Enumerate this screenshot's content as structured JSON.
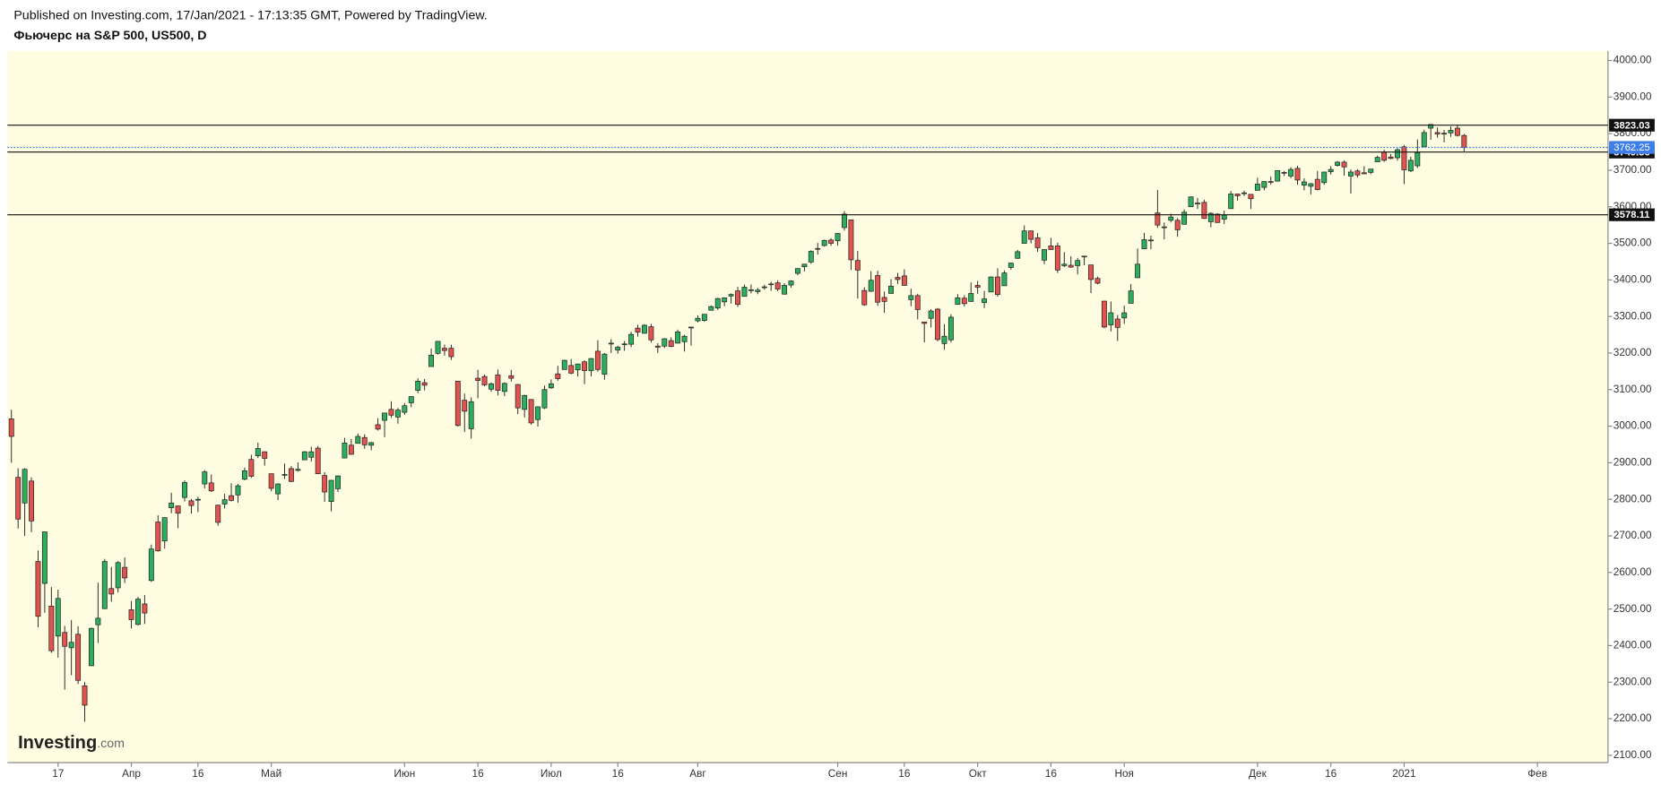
{
  "header": {
    "published": "Published on Investing.com, 17/Jan/2021 - 17:13:35 GMT, Powered by TradingView."
  },
  "chart_data": {
    "type": "candlestick",
    "title": "Фьючерс на S&P 500, US500, D",
    "brand": "Investing",
    "brand_suffix": ".com",
    "up_color": "#2dae5f",
    "down_color": "#e0534f",
    "background": "#fffde1",
    "ylim": [
      2080,
      4026
    ],
    "xlim": [
      -0.6,
      239.6
    ],
    "yticks": [
      {
        "value": 2100,
        "label": "2100.00"
      },
      {
        "value": 2200,
        "label": "2200.00"
      },
      {
        "value": 2300,
        "label": "2300.00"
      },
      {
        "value": 2400,
        "label": "2400.00"
      },
      {
        "value": 2500,
        "label": "2500.00"
      },
      {
        "value": 2600,
        "label": "2600.00"
      },
      {
        "value": 2700,
        "label": "2700.00"
      },
      {
        "value": 2800,
        "label": "2800.00"
      },
      {
        "value": 2900,
        "label": "2900.00"
      },
      {
        "value": 3000,
        "label": "3000.00"
      },
      {
        "value": 3100,
        "label": "3100.00"
      },
      {
        "value": 3200,
        "label": "3200.00"
      },
      {
        "value": 3300,
        "label": "3300.00"
      },
      {
        "value": 3400,
        "label": "3400.00"
      },
      {
        "value": 3500,
        "label": "3500.00"
      },
      {
        "value": 3600,
        "label": "3600.00"
      },
      {
        "value": 3700,
        "label": "3700.00"
      },
      {
        "value": 3800,
        "label": "3800.00"
      },
      {
        "value": 3900,
        "label": "3900.00"
      },
      {
        "value": 4000,
        "label": "4000.00"
      }
    ],
    "xticks": [
      {
        "value": 7,
        "label": "17"
      },
      {
        "value": 18,
        "label": "Апр"
      },
      {
        "value": 28,
        "label": "16"
      },
      {
        "value": 39,
        "label": "Май"
      },
      {
        "value": 59,
        "label": "Июн"
      },
      {
        "value": 70,
        "label": "16"
      },
      {
        "value": 81,
        "label": "Июл"
      },
      {
        "value": 91,
        "label": "16"
      },
      {
        "value": 103,
        "label": "Авг"
      },
      {
        "value": 124,
        "label": "Сен"
      },
      {
        "value": 134,
        "label": "16"
      },
      {
        "value": 145,
        "label": "Окт"
      },
      {
        "value": 156,
        "label": "16"
      },
      {
        "value": 167,
        "label": "Ноя"
      },
      {
        "value": 187,
        "label": "Дек"
      },
      {
        "value": 198,
        "label": "16"
      },
      {
        "value": 209,
        "label": "2021"
      },
      {
        "value": 229,
        "label": "Фев"
      }
    ],
    "levels": [
      3823.03,
      3749.56,
      3578.11
    ],
    "last_price": 3762.25,
    "last_color": "#3d7ee8",
    "ohlc": [
      [
        3020,
        3045,
        2900,
        2972
      ],
      [
        2860,
        2885,
        2720,
        2746
      ],
      [
        2790,
        2885,
        2700,
        2882
      ],
      [
        2850,
        2860,
        2710,
        2741
      ],
      [
        2630,
        2660,
        2450,
        2480
      ],
      [
        2570,
        2712,
        2490,
        2711
      ],
      [
        2508,
        2560,
        2380,
        2386
      ],
      [
        2426,
        2553,
        2367,
        2529
      ],
      [
        2436,
        2454,
        2280,
        2398
      ],
      [
        2394,
        2470,
        2319,
        2409
      ],
      [
        2431,
        2453,
        2295,
        2305
      ],
      [
        2290,
        2300,
        2192,
        2237
      ],
      [
        2345,
        2449,
        2344,
        2447
      ],
      [
        2457,
        2572,
        2407,
        2475
      ],
      [
        2501,
        2637,
        2500,
        2630
      ],
      [
        2556,
        2615,
        2520,
        2541
      ],
      [
        2558,
        2631,
        2545,
        2627
      ],
      [
        2614,
        2641,
        2571,
        2585
      ],
      [
        2498,
        2522,
        2447,
        2471
      ],
      [
        2458,
        2533,
        2455,
        2527
      ],
      [
        2514,
        2538,
        2459,
        2489
      ],
      [
        2578,
        2676,
        2574,
        2664
      ],
      [
        2738,
        2756,
        2657,
        2659
      ],
      [
        2686,
        2750,
        2665,
        2750
      ],
      [
        2777,
        2818,
        2762,
        2790
      ],
      [
        2782,
        2783,
        2721,
        2762
      ],
      [
        2805,
        2852,
        2794,
        2846
      ],
      [
        2796,
        2801,
        2761,
        2783
      ],
      [
        2799,
        2807,
        2765,
        2800
      ],
      [
        2842,
        2880,
        2830,
        2875
      ],
      [
        2845,
        2868,
        2820,
        2823
      ],
      [
        2784,
        2785,
        2728,
        2737
      ],
      [
        2787,
        2815,
        2775,
        2799
      ],
      [
        2810,
        2844,
        2794,
        2797
      ],
      [
        2812,
        2842,
        2791,
        2837
      ],
      [
        2855,
        2887,
        2852,
        2878
      ],
      [
        2909,
        2922,
        2859,
        2863
      ],
      [
        2919,
        2955,
        2913,
        2939
      ],
      [
        2930,
        2931,
        2892,
        2912
      ],
      [
        2870,
        2870,
        2822,
        2830
      ],
      [
        2815,
        2844,
        2798,
        2842
      ],
      [
        2868,
        2898,
        2856,
        2868
      ],
      [
        2884,
        2891,
        2847,
        2849
      ],
      [
        2879,
        2901,
        2876,
        2882
      ],
      [
        2908,
        2932,
        2908,
        2930
      ],
      [
        2915,
        2944,
        2903,
        2930
      ],
      [
        2940,
        2946,
        2869,
        2870
      ],
      [
        2865,
        2874,
        2793,
        2820
      ],
      [
        2794,
        2852,
        2767,
        2852
      ],
      [
        2829,
        2865,
        2820,
        2864
      ],
      [
        2913,
        2968,
        2913,
        2954
      ],
      [
        2948,
        2965,
        2922,
        2923
      ],
      [
        2953,
        2980,
        2953,
        2972
      ],
      [
        2969,
        2978,
        2938,
        2949
      ],
      [
        2948,
        2957,
        2934,
        2955
      ],
      [
        3004,
        3022,
        2988,
        2992
      ],
      [
        3016,
        3036,
        2970,
        3036
      ],
      [
        3046,
        3068,
        3023,
        3030
      ],
      [
        3025,
        3050,
        3007,
        3044
      ],
      [
        3038,
        3063,
        3031,
        3056
      ],
      [
        3064,
        3081,
        3052,
        3081
      ],
      [
        3098,
        3131,
        3090,
        3123
      ],
      [
        3119,
        3129,
        3098,
        3112
      ],
      [
        3163,
        3212,
        3163,
        3194
      ],
      [
        3199,
        3233,
        3196,
        3232
      ],
      [
        3213,
        3223,
        3193,
        3207
      ],
      [
        3213,
        3223,
        3181,
        3190
      ],
      [
        3123,
        3123,
        2999,
        3002
      ],
      [
        3071,
        3089,
        2984,
        3041
      ],
      [
        2993,
        3079,
        2966,
        3067
      ],
      [
        3131,
        3154,
        3076,
        3125
      ],
      [
        3136,
        3141,
        3109,
        3113
      ],
      [
        3101,
        3120,
        3094,
        3116
      ],
      [
        3140,
        3155,
        3084,
        3098
      ],
      [
        3095,
        3120,
        3082,
        3117
      ],
      [
        3138,
        3154,
        3122,
        3131
      ],
      [
        3114,
        3115,
        3033,
        3050
      ],
      [
        3046,
        3086,
        3024,
        3084
      ],
      [
        3073,
        3074,
        3004,
        3009
      ],
      [
        3018,
        3054,
        2999,
        3053
      ],
      [
        3050,
        3111,
        3047,
        3100
      ],
      [
        3105,
        3128,
        3102,
        3116
      ],
      [
        3143,
        3165,
        3124,
        3130
      ],
      [
        3155,
        3182,
        3155,
        3180
      ],
      [
        3166,
        3184,
        3142,
        3145
      ],
      [
        3154,
        3171,
        3136,
        3170
      ],
      [
        3176,
        3180,
        3115,
        3152
      ],
      [
        3152,
        3186,
        3136,
        3185
      ],
      [
        3205,
        3235,
        3149,
        3155
      ],
      [
        3142,
        3200,
        3127,
        3197
      ],
      [
        3225,
        3238,
        3200,
        3227
      ],
      [
        3208,
        3220,
        3198,
        3216
      ],
      [
        3224,
        3233,
        3206,
        3225
      ],
      [
        3224,
        3258,
        3216,
        3251
      ],
      [
        3268,
        3277,
        3245,
        3257
      ],
      [
        3254,
        3279,
        3253,
        3276
      ],
      [
        3272,
        3280,
        3229,
        3236
      ],
      [
        3219,
        3227,
        3200,
        3216
      ],
      [
        3219,
        3241,
        3214,
        3239
      ],
      [
        3234,
        3243,
        3216,
        3218
      ],
      [
        3227,
        3264,
        3227,
        3258
      ],
      [
        3231,
        3250,
        3204,
        3246
      ],
      [
        3270,
        3272,
        3220,
        3271
      ],
      [
        3288,
        3303,
        3284,
        3295
      ],
      [
        3289,
        3306,
        3286,
        3306
      ],
      [
        3317,
        3330,
        3317,
        3327
      ],
      [
        3323,
        3351,
        3318,
        3349
      ],
      [
        3340,
        3352,
        3328,
        3351
      ],
      [
        3356,
        3363,
        3335,
        3360
      ],
      [
        3370,
        3381,
        3326,
        3333
      ],
      [
        3355,
        3387,
        3355,
        3380
      ],
      [
        3372,
        3387,
        3363,
        3373
      ],
      [
        3368,
        3378,
        3361,
        3372
      ],
      [
        3380,
        3387,
        3373,
        3381
      ],
      [
        3387,
        3395,
        3370,
        3389
      ],
      [
        3392,
        3399,
        3369,
        3375
      ],
      [
        3361,
        3391,
        3360,
        3385
      ],
      [
        3386,
        3399,
        3379,
        3397
      ],
      [
        3418,
        3432,
        3413,
        3431
      ],
      [
        3436,
        3444,
        3423,
        3443
      ],
      [
        3449,
        3481,
        3444,
        3478
      ],
      [
        3486,
        3501,
        3469,
        3485
      ],
      [
        3494,
        3510,
        3491,
        3508
      ],
      [
        3509,
        3514,
        3493,
        3500
      ],
      [
        3507,
        3528,
        3494,
        3527
      ],
      [
        3543,
        3588,
        3535,
        3580
      ],
      [
        3564,
        3564,
        3427,
        3455
      ],
      [
        3453,
        3479,
        3349,
        3427
      ],
      [
        3371,
        3380,
        3329,
        3332
      ],
      [
        3369,
        3424,
        3367,
        3399
      ],
      [
        3412,
        3425,
        3329,
        3339
      ],
      [
        3352,
        3368,
        3310,
        3341
      ],
      [
        3363,
        3402,
        3363,
        3383
      ],
      [
        3407,
        3419,
        3389,
        3401
      ],
      [
        3411,
        3429,
        3384,
        3385
      ],
      [
        3346,
        3376,
        3328,
        3357
      ],
      [
        3357,
        3362,
        3292,
        3319
      ],
      [
        3285,
        3285,
        3229,
        3281
      ],
      [
        3295,
        3320,
        3270,
        3315
      ],
      [
        3320,
        3323,
        3232,
        3237
      ],
      [
        3226,
        3279,
        3209,
        3246
      ],
      [
        3236,
        3306,
        3229,
        3298
      ],
      [
        3333,
        3361,
        3333,
        3351
      ],
      [
        3350,
        3358,
        3327,
        3335
      ],
      [
        3341,
        3393,
        3341,
        3363
      ],
      [
        3385,
        3397,
        3362,
        3380
      ],
      [
        3338,
        3370,
        3323,
        3348
      ],
      [
        3367,
        3409,
        3367,
        3408
      ],
      [
        3408,
        3432,
        3354,
        3360
      ],
      [
        3384,
        3426,
        3384,
        3419
      ],
      [
        3434,
        3447,
        3428,
        3446
      ],
      [
        3459,
        3482,
        3458,
        3477
      ],
      [
        3500,
        3549,
        3500,
        3534
      ],
      [
        3534,
        3534,
        3500,
        3511
      ],
      [
        3515,
        3528,
        3477,
        3488
      ],
      [
        3454,
        3484,
        3443,
        3483
      ],
      [
        3493,
        3515,
        3482,
        3483
      ],
      [
        3493,
        3502,
        3419,
        3427
      ],
      [
        3439,
        3476,
        3435,
        3443
      ],
      [
        3440,
        3465,
        3433,
        3435
      ],
      [
        3439,
        3460,
        3415,
        3453
      ],
      [
        3464,
        3466,
        3440,
        3465
      ],
      [
        3441,
        3441,
        3364,
        3401
      ],
      [
        3404,
        3409,
        3388,
        3391
      ],
      [
        3342,
        3342,
        3268,
        3271
      ],
      [
        3277,
        3341,
        3259,
        3310
      ],
      [
        3293,
        3304,
        3233,
        3270
      ],
      [
        3296,
        3330,
        3280,
        3310
      ],
      [
        3336,
        3389,
        3336,
        3370
      ],
      [
        3406,
        3486,
        3405,
        3443
      ],
      [
        3485,
        3529,
        3485,
        3510
      ],
      [
        3508,
        3521,
        3484,
        3509
      ],
      [
        3583,
        3646,
        3543,
        3550
      ],
      [
        3543,
        3557,
        3511,
        3545
      ],
      [
        3563,
        3581,
        3557,
        3572
      ],
      [
        3563,
        3569,
        3518,
        3537
      ],
      [
        3552,
        3593,
        3552,
        3585
      ],
      [
        3600,
        3628,
        3600,
        3627
      ],
      [
        3610,
        3624,
        3594,
        3610
      ],
      [
        3612,
        3619,
        3567,
        3568
      ],
      [
        3559,
        3585,
        3544,
        3582
      ],
      [
        3580,
        3582,
        3556,
        3557
      ],
      [
        3566,
        3590,
        3553,
        3577
      ],
      [
        3595,
        3643,
        3595,
        3635
      ],
      [
        3635,
        3636,
        3617,
        3630
      ],
      [
        3638,
        3644,
        3629,
        3638
      ],
      [
        3634,
        3634,
        3594,
        3622
      ],
      [
        3645,
        3679,
        3645,
        3662
      ],
      [
        3653,
        3670,
        3645,
        3669
      ],
      [
        3669,
        3683,
        3661,
        3667
      ],
      [
        3670,
        3699,
        3670,
        3699
      ],
      [
        3694,
        3698,
        3684,
        3692
      ],
      [
        3684,
        3708,
        3678,
        3702
      ],
      [
        3705,
        3712,
        3660,
        3673
      ],
      [
        3659,
        3678,
        3645,
        3668
      ],
      [
        3656,
        3665,
        3634,
        3663
      ],
      [
        3675,
        3698,
        3645,
        3647
      ],
      [
        3666,
        3695,
        3660,
        3695
      ],
      [
        3696,
        3711,
        3688,
        3702
      ],
      [
        3713,
        3725,
        3710,
        3722
      ],
      [
        3722,
        3727,
        3685,
        3709
      ],
      [
        3684,
        3702,
        3636,
        3695
      ],
      [
        3698,
        3703,
        3680,
        3687
      ],
      [
        3693,
        3711,
        3689,
        3690
      ],
      [
        3694,
        3703,
        3689,
        3703
      ],
      [
        3723,
        3740,
        3723,
        3735
      ],
      [
        3750,
        3756,
        3723,
        3727
      ],
      [
        3736,
        3744,
        3730,
        3732
      ],
      [
        3734,
        3760,
        3726,
        3756
      ],
      [
        3764,
        3769,
        3662,
        3701
      ],
      [
        3698,
        3737,
        3695,
        3727
      ],
      [
        3712,
        3784,
        3706,
        3748
      ],
      [
        3764,
        3811,
        3764,
        3803
      ],
      [
        3815,
        3826,
        3783,
        3825
      ],
      [
        3803,
        3817,
        3789,
        3799
      ],
      [
        3801,
        3810,
        3776,
        3801
      ],
      [
        3802,
        3820,
        3791,
        3809
      ],
      [
        3815,
        3823,
        3792,
        3795
      ],
      [
        3795,
        3799,
        3750,
        3762.25
      ]
    ]
  }
}
